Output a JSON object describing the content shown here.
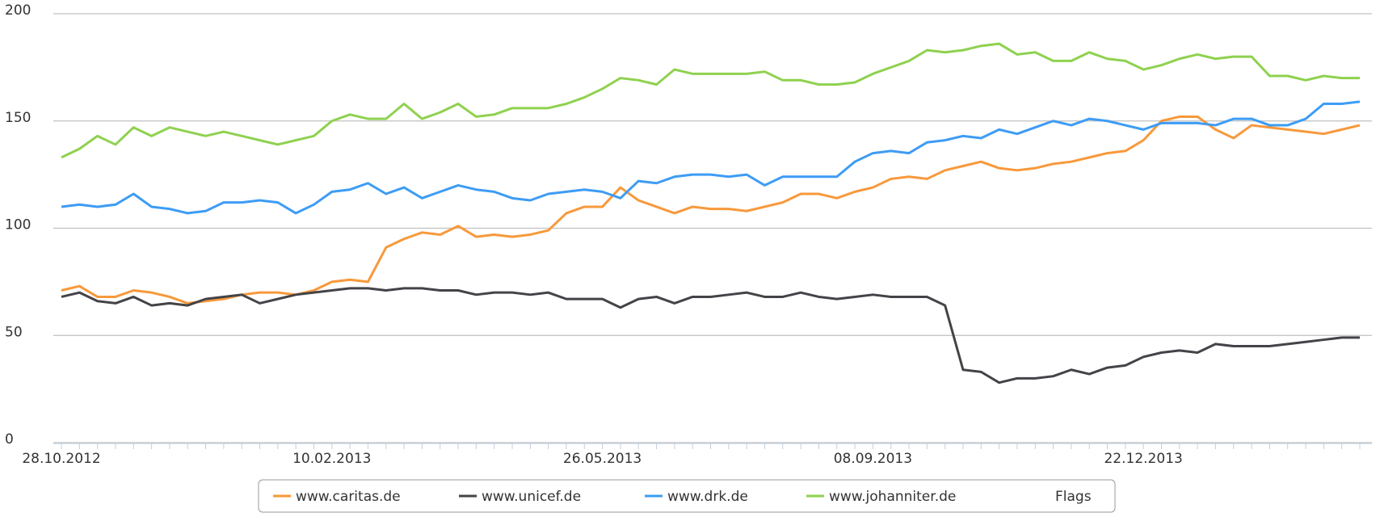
{
  "chart_data": {
    "type": "line",
    "categories": [
      "28.10.2012",
      null,
      null,
      null,
      null,
      null,
      null,
      null,
      null,
      null,
      null,
      null,
      null,
      null,
      null,
      "10.02.2013",
      null,
      null,
      null,
      null,
      null,
      null,
      null,
      null,
      null,
      null,
      null,
      null,
      null,
      null,
      "26.05.2013",
      null,
      null,
      null,
      null,
      null,
      null,
      null,
      null,
      null,
      null,
      null,
      null,
      null,
      null,
      "08.09.2013",
      null,
      null,
      null,
      null,
      null,
      null,
      null,
      null,
      null,
      null,
      null,
      null,
      null,
      null,
      "22.12.2013",
      null,
      null,
      null,
      null,
      null,
      null,
      null,
      null,
      null,
      null,
      null,
      null
    ],
    "series": [
      {
        "name": "www.caritas.de",
        "color": "#f7993b",
        "values": [
          71,
          73,
          68,
          68,
          71,
          70,
          68,
          65,
          66,
          67,
          69,
          70,
          70,
          69,
          71,
          75,
          76,
          75,
          91,
          95,
          98,
          97,
          101,
          96,
          97,
          96,
          97,
          99,
          107,
          110,
          110,
          119,
          113,
          110,
          107,
          110,
          109,
          109,
          108,
          110,
          112,
          116,
          116,
          114,
          117,
          119,
          123,
          124,
          123,
          127,
          129,
          131,
          128,
          127,
          128,
          130,
          131,
          133,
          135,
          136,
          141,
          150,
          152,
          152,
          146,
          142,
          148,
          147,
          146,
          145,
          144,
          146,
          148
        ]
      },
      {
        "name": "www.unicef.de",
        "color": "#434348",
        "values": [
          68,
          70,
          66,
          65,
          68,
          64,
          65,
          64,
          67,
          68,
          69,
          65,
          67,
          69,
          70,
          71,
          72,
          72,
          71,
          72,
          72,
          71,
          71,
          69,
          70,
          70,
          69,
          70,
          67,
          67,
          67,
          63,
          67,
          68,
          65,
          68,
          68,
          69,
          70,
          68,
          68,
          70,
          68,
          67,
          68,
          69,
          68,
          68,
          68,
          64,
          34,
          33,
          28,
          30,
          30,
          31,
          34,
          32,
          35,
          36,
          40,
          42,
          43,
          42,
          46,
          45,
          45,
          45,
          46,
          47,
          48,
          49,
          49
        ]
      },
      {
        "name": "www.drk.de",
        "color": "#3d9cf5",
        "values": [
          110,
          111,
          110,
          111,
          116,
          110,
          109,
          107,
          108,
          112,
          112,
          113,
          112,
          107,
          111,
          117,
          118,
          121,
          116,
          119,
          114,
          117,
          120,
          118,
          117,
          114,
          113,
          116,
          117,
          118,
          117,
          114,
          122,
          121,
          124,
          125,
          125,
          124,
          125,
          120,
          124,
          124,
          124,
          124,
          131,
          135,
          136,
          135,
          140,
          141,
          143,
          142,
          146,
          144,
          147,
          150,
          148,
          151,
          150,
          148,
          146,
          149,
          149,
          149,
          148,
          151,
          151,
          148,
          148,
          151,
          158,
          158,
          159
        ]
      },
      {
        "name": "www.johanniter.de",
        "color": "#8fd14f",
        "values": [
          133,
          137,
          143,
          139,
          147,
          143,
          147,
          145,
          143,
          145,
          143,
          141,
          139,
          141,
          143,
          150,
          153,
          151,
          151,
          158,
          151,
          154,
          158,
          152,
          153,
          156,
          156,
          156,
          158,
          161,
          165,
          170,
          169,
          167,
          174,
          172,
          172,
          172,
          172,
          173,
          169,
          169,
          167,
          167,
          168,
          172,
          175,
          178,
          183,
          182,
          183,
          185,
          186,
          181,
          182,
          178,
          178,
          182,
          179,
          178,
          174,
          176,
          179,
          181,
          179,
          180,
          180,
          171,
          171,
          169,
          171,
          170,
          170
        ]
      }
    ],
    "flags_label": "Flags",
    "ylim": [
      0,
      200
    ],
    "yticks": [
      0,
      50,
      100,
      150,
      200
    ],
    "grid": true
  }
}
